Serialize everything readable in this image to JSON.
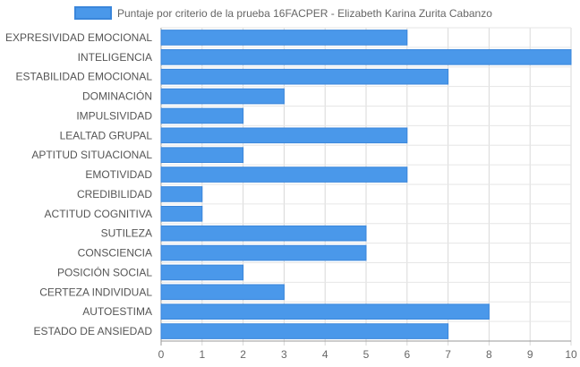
{
  "chart_data": {
    "type": "bar",
    "orientation": "horizontal",
    "legend_position": "top",
    "grid": true,
    "xlim": [
      0,
      10
    ],
    "xticks": [
      0,
      1,
      2,
      3,
      4,
      5,
      6,
      7,
      8,
      9,
      10
    ],
    "categories": [
      "EXPRESIVIDAD EMOCIONAL",
      "INTELIGENCIA",
      "ESTABILIDAD EMOCIONAL",
      "DOMINACIÓN",
      "IMPULSIVIDAD",
      "LEALTAD GRUPAL",
      "APTITUD SITUACIONAL",
      "EMOTIVIDAD",
      "CREDIBILIDAD",
      "ACTITUD COGNITIVA",
      "SUTILEZA",
      "CONSCIENCIA",
      "POSICIÓN SOCIAL",
      "CERTEZA INDIVIDUAL",
      "AUTOESTIMA",
      "ESTADO DE ANSIEDAD"
    ],
    "series": [
      {
        "name": "Puntaje por criterio de la prueba 16FACPER -  Elizabeth Karina Zurita Cabanzo",
        "color": "#4a98ea",
        "border_color": "#3a86db",
        "values": [
          6,
          10,
          7,
          3,
          2,
          6,
          2,
          6,
          1,
          1,
          5,
          5,
          2,
          3,
          8,
          7
        ]
      }
    ]
  }
}
